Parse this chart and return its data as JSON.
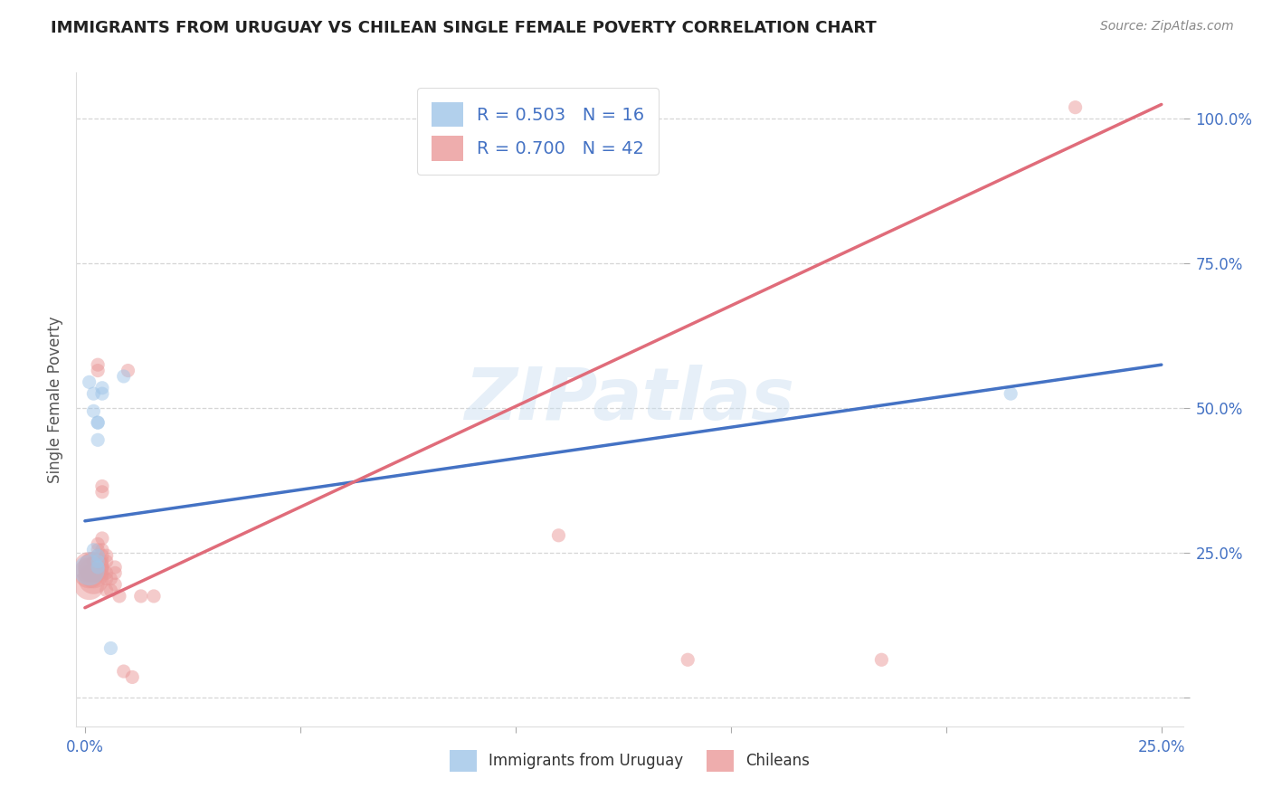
{
  "title": "IMMIGRANTS FROM URUGUAY VS CHILEAN SINGLE FEMALE POVERTY CORRELATION CHART",
  "source": "Source: ZipAtlas.com",
  "ylabel": "Single Female Poverty",
  "yticks": [
    0.0,
    0.25,
    0.5,
    0.75,
    1.0
  ],
  "ytick_labels": [
    "",
    "25.0%",
    "50.0%",
    "75.0%",
    "100.0%"
  ],
  "xticks": [
    0.0,
    0.05,
    0.1,
    0.15,
    0.2,
    0.25
  ],
  "xtick_labels": [
    "0.0%",
    "",
    "",
    "",
    "",
    "25.0%"
  ],
  "xlim": [
    -0.002,
    0.255
  ],
  "ylim": [
    -0.05,
    1.08
  ],
  "legend_blue_r": "R = 0.503",
  "legend_blue_n": "N = 16",
  "legend_pink_r": "R = 0.700",
  "legend_pink_n": "N = 42",
  "watermark": "ZIPatlas",
  "blue_scatter": [
    [
      0.001,
      0.545
    ],
    [
      0.002,
      0.525
    ],
    [
      0.002,
      0.495
    ],
    [
      0.003,
      0.475
    ],
    [
      0.003,
      0.475
    ],
    [
      0.003,
      0.445
    ],
    [
      0.004,
      0.535
    ],
    [
      0.004,
      0.525
    ],
    [
      0.001,
      0.22
    ],
    [
      0.002,
      0.255
    ],
    [
      0.003,
      0.245
    ],
    [
      0.003,
      0.235
    ],
    [
      0.003,
      0.225
    ],
    [
      0.006,
      0.085
    ],
    [
      0.009,
      0.555
    ],
    [
      0.215,
      0.525
    ]
  ],
  "pink_scatter": [
    [
      0.001,
      0.225
    ],
    [
      0.001,
      0.215
    ],
    [
      0.001,
      0.195
    ],
    [
      0.002,
      0.235
    ],
    [
      0.002,
      0.225
    ],
    [
      0.002,
      0.225
    ],
    [
      0.002,
      0.215
    ],
    [
      0.002,
      0.205
    ],
    [
      0.003,
      0.265
    ],
    [
      0.003,
      0.255
    ],
    [
      0.003,
      0.245
    ],
    [
      0.003,
      0.235
    ],
    [
      0.003,
      0.235
    ],
    [
      0.003,
      0.575
    ],
    [
      0.003,
      0.565
    ],
    [
      0.004,
      0.275
    ],
    [
      0.004,
      0.255
    ],
    [
      0.004,
      0.245
    ],
    [
      0.004,
      0.235
    ],
    [
      0.004,
      0.225
    ],
    [
      0.004,
      0.355
    ],
    [
      0.004,
      0.365
    ],
    [
      0.005,
      0.245
    ],
    [
      0.005,
      0.235
    ],
    [
      0.005,
      0.215
    ],
    [
      0.005,
      0.205
    ],
    [
      0.005,
      0.185
    ],
    [
      0.006,
      0.205
    ],
    [
      0.006,
      0.185
    ],
    [
      0.007,
      0.225
    ],
    [
      0.007,
      0.215
    ],
    [
      0.007,
      0.195
    ],
    [
      0.008,
      0.175
    ],
    [
      0.009,
      0.045
    ],
    [
      0.01,
      0.565
    ],
    [
      0.011,
      0.035
    ],
    [
      0.013,
      0.175
    ],
    [
      0.016,
      0.175
    ],
    [
      0.11,
      0.28
    ],
    [
      0.14,
      0.065
    ],
    [
      0.185,
      0.065
    ],
    [
      0.23,
      1.02
    ]
  ],
  "blue_line_x": [
    0.0,
    0.25
  ],
  "blue_line_y": [
    0.305,
    0.575
  ],
  "pink_line_x": [
    0.0,
    0.25
  ],
  "pink_line_y": [
    0.155,
    1.025
  ],
  "blue_color": "#9fc5e8",
  "pink_color": "#ea9999",
  "blue_line_color": "#4472c4",
  "pink_line_color": "#e06c7a",
  "bg_color": "#ffffff",
  "grid_color": "#cccccc",
  "title_color": "#222222",
  "axis_label_color": "#4472c4",
  "scatter_alpha": 0.5,
  "scatter_size": 120,
  "large_scatter_size": 600
}
